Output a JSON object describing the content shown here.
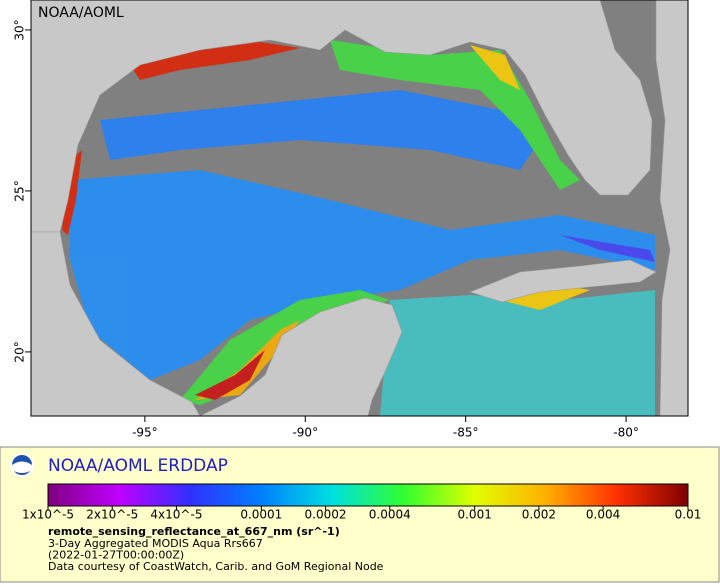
{
  "map": {
    "title": "NOAA/AOML",
    "xlim": [
      -98.55,
      -78.07
    ],
    "ylim": [
      18.01,
      30.93
    ],
    "xticks": [
      {
        "value": -95,
        "label": "-95°"
      },
      {
        "value": -90,
        "label": "-90°"
      },
      {
        "value": -85,
        "label": "-85°"
      },
      {
        "value": -80,
        "label": "-80°"
      }
    ],
    "yticks": [
      {
        "value": 20,
        "label": "20°"
      },
      {
        "value": 25,
        "label": "25°"
      },
      {
        "value": 30,
        "label": "30°"
      }
    ]
  },
  "legend": {
    "title": "NOAA/AOML ERDDAP",
    "colorbar": {
      "log_scale": true,
      "lim": [
        1e-05,
        0.01
      ],
      "ticks": [
        {
          "value": 1e-05,
          "label": "1x10^-5"
        },
        {
          "value": 2e-05,
          "label": "2x10^-5"
        },
        {
          "value": 4e-05,
          "label": "4x10^-5"
        },
        0.0001,
        0.0002,
        0.0004,
        0.001,
        0.002,
        0.004,
        0.01
      ],
      "colors": [
        "#80007f",
        "#c000ff",
        "#3030ff",
        "#0080ff",
        "#00e0e0",
        "#30ff30",
        "#e0ff00",
        "#ffb000",
        "#ff3000",
        "#800000"
      ]
    },
    "variable": "remote_sensing_reflectance_at_667_nm (sr^-1)",
    "lines": [
      "3-Day Aggregated MODIS Aqua Rrs667",
      "(2022-01-27T00:00:00Z)",
      "Data courtesy of CoastWatch, Carib. and GoM Regional Node"
    ]
  }
}
